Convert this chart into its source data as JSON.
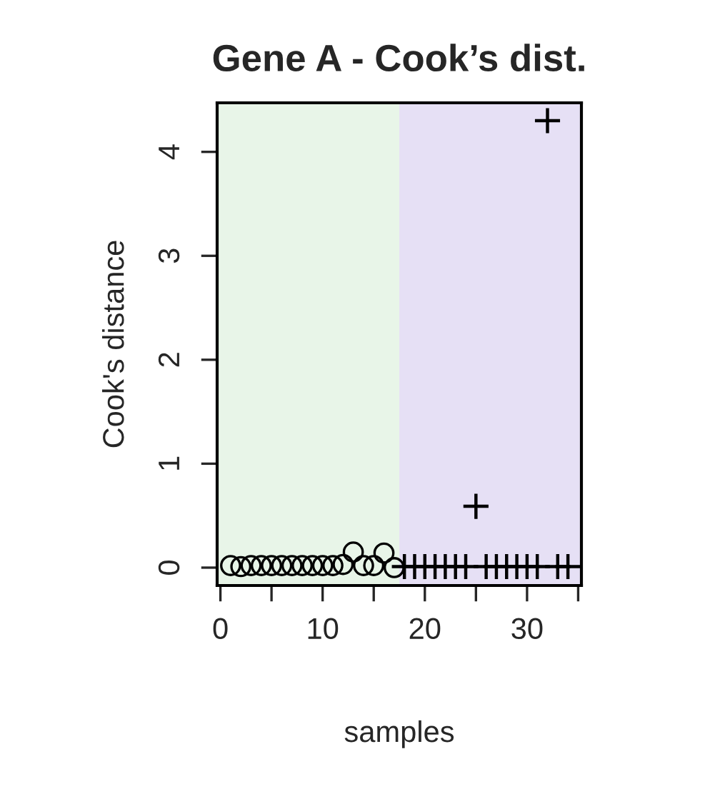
{
  "chart_data": {
    "type": "scatter",
    "title": "Gene A - Cook’s dist.",
    "xlabel": "samples",
    "ylabel": "Cook's distance",
    "xlim": [
      -0.32,
      35.32
    ],
    "ylim": [
      -0.172,
      4.472
    ],
    "xticks": [
      0,
      {
        "value": 5,
        "label": null
      },
      10,
      {
        "value": 15,
        "label": null
      },
      20,
      {
        "value": 25,
        "label": null
      },
      30,
      {
        "value": 35,
        "label": null
      }
    ],
    "yticks": [
      0,
      1,
      2,
      3,
      4
    ],
    "grid": false,
    "bands": [
      {
        "axis": "x",
        "from": -0.32,
        "to": 17.5,
        "label": null,
        "color": "#e8f5e8"
      },
      {
        "axis": "x",
        "from": 17.5,
        "to": 35.32,
        "label": null,
        "color": "#e6e0f5"
      }
    ],
    "series": [
      {
        "color": "#000000",
        "marker": "circle",
        "x": [
          1,
          2,
          3,
          4,
          5,
          6,
          7,
          8,
          9,
          10,
          11,
          12,
          13,
          14,
          15,
          16,
          17
        ],
        "values": [
          0.02,
          0.01,
          0.02,
          0.02,
          0.02,
          0.02,
          0.02,
          0.02,
          0.02,
          0.02,
          0.02,
          0.03,
          0.15,
          0.02,
          0.02,
          0.14,
          0.0
        ]
      },
      {
        "color": "#000000",
        "marker": "cross",
        "x": [
          18,
          19,
          20,
          21,
          22,
          23,
          24,
          25,
          26,
          27,
          28,
          29,
          30,
          31,
          32,
          33,
          34
        ],
        "values": [
          0.01,
          0.01,
          0.01,
          0.01,
          0.01,
          0.01,
          0.01,
          0.59,
          0.01,
          0.01,
          0.01,
          0.01,
          0.01,
          0.01,
          4.3,
          0.01,
          0.01
        ]
      }
    ]
  }
}
